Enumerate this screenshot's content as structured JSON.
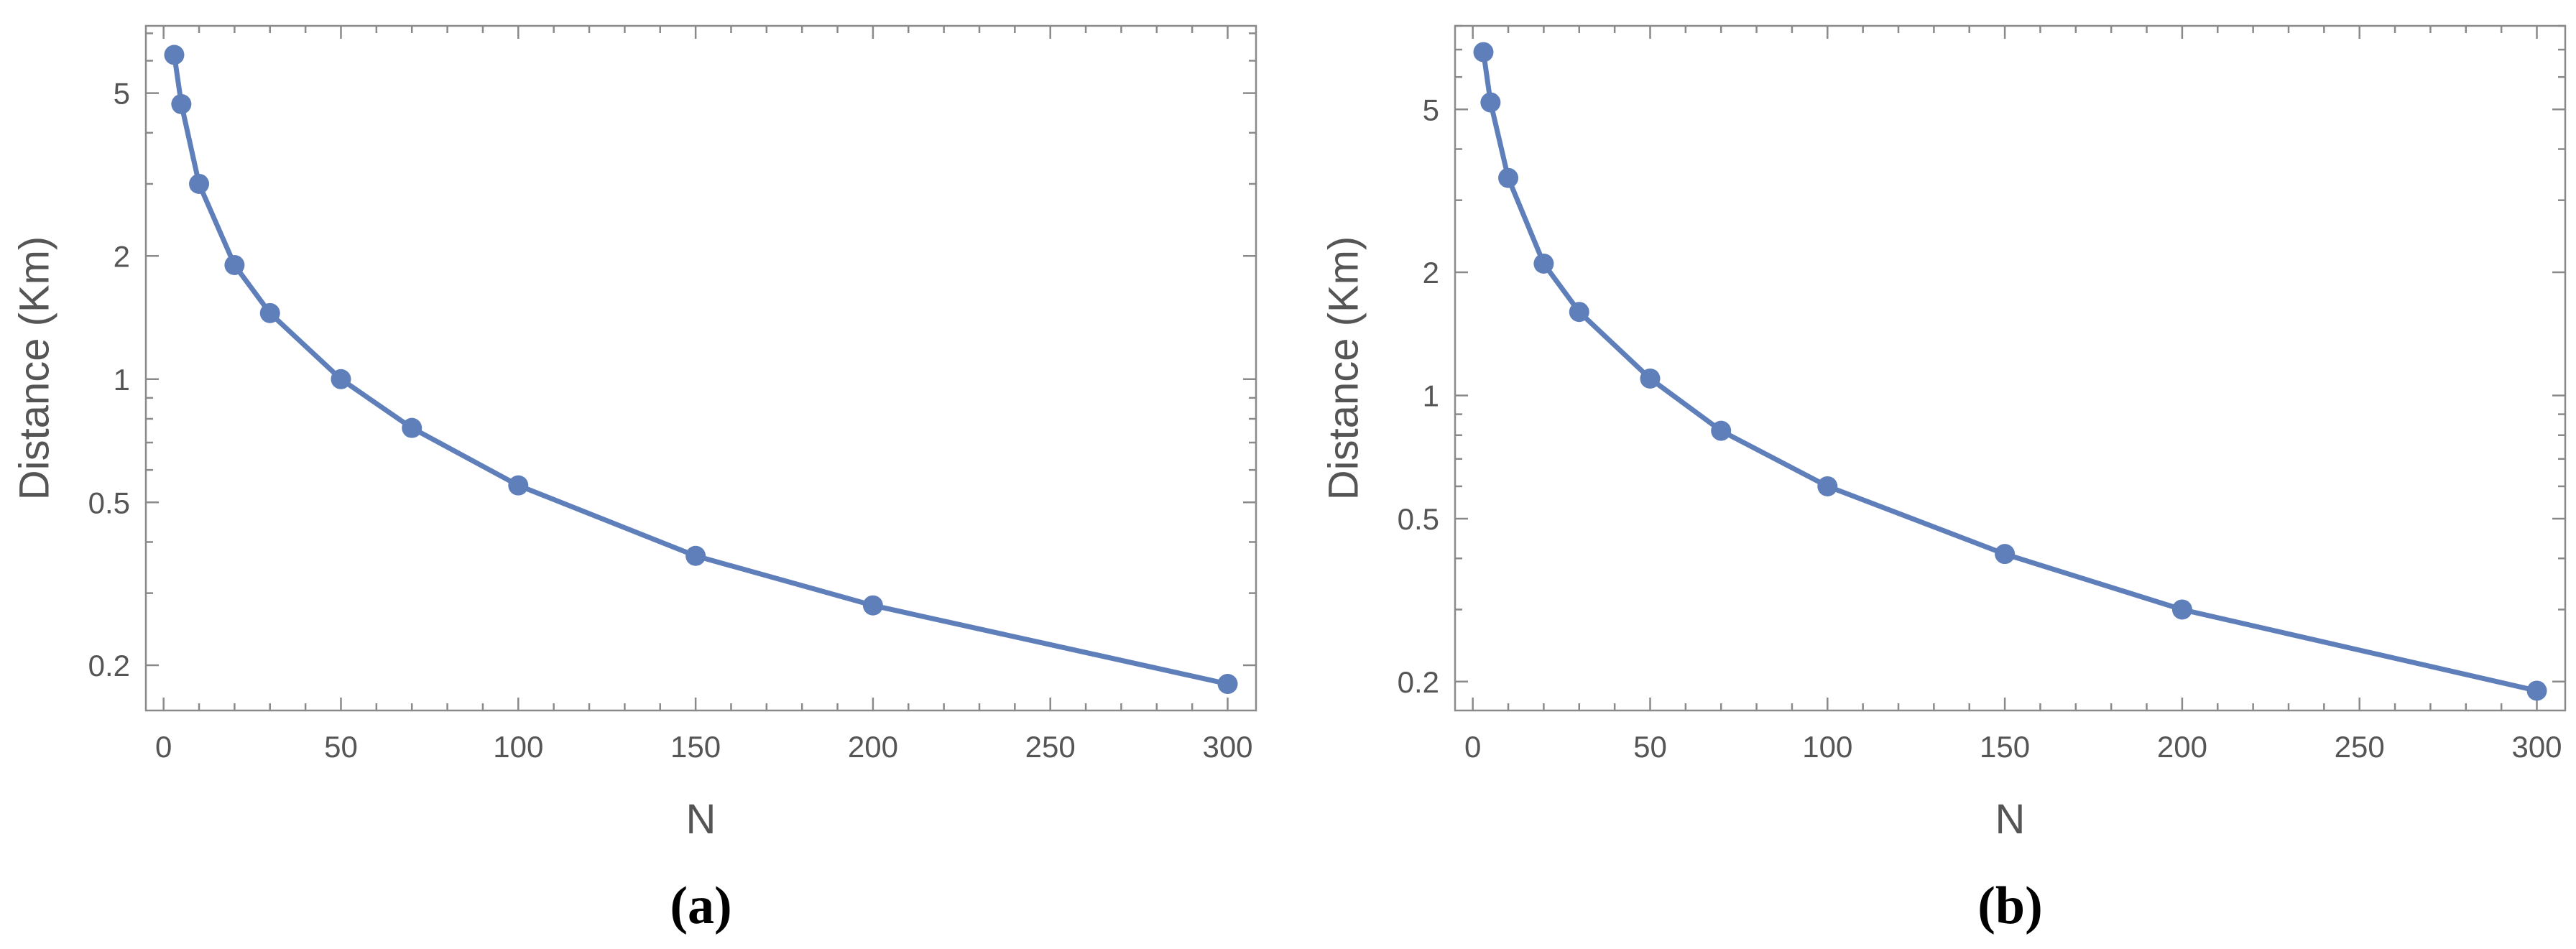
{
  "colors": {
    "series": "#5f7fba",
    "frame": "#8a8a8a",
    "text": "#555555"
  },
  "chart_data": [
    {
      "type": "line",
      "caption": "(a)",
      "xlabel": "N",
      "ylabel": "Distance (Km)",
      "yscale": "log",
      "xlim": [
        -5,
        308
      ],
      "ylim": [
        0.155,
        7.3
      ],
      "xticks": [
        0,
        50,
        100,
        150,
        200,
        250,
        300
      ],
      "xtick_labels": [
        "0",
        "50",
        "100",
        "150",
        "200",
        "250",
        "300"
      ],
      "yticks": [
        0.2,
        0.5,
        1,
        2,
        5
      ],
      "ytick_labels": [
        "0.2",
        "0.5",
        "1",
        "2",
        "5"
      ],
      "grid": false,
      "markers": true,
      "x": [
        3,
        5,
        10,
        20,
        30,
        50,
        70,
        100,
        150,
        200,
        300
      ],
      "y": [
        6.2,
        4.7,
        3.0,
        1.9,
        1.45,
        1.0,
        0.76,
        0.55,
        0.37,
        0.28,
        0.18
      ]
    },
    {
      "type": "line",
      "caption": "(b)",
      "xlabel": "N",
      "ylabel": "Distance (Km)",
      "yscale": "log",
      "xlim": [
        -5,
        308
      ],
      "ylim": [
        0.17,
        8.0
      ],
      "xticks": [
        0,
        50,
        100,
        150,
        200,
        250,
        300
      ],
      "xtick_labels": [
        "0",
        "50",
        "100",
        "150",
        "200",
        "250",
        "300"
      ],
      "yticks": [
        0.2,
        0.5,
        1,
        2,
        5
      ],
      "ytick_labels": [
        "0.2",
        "0.5",
        "1",
        "2",
        "5"
      ],
      "grid": false,
      "markers": true,
      "x": [
        3,
        5,
        10,
        20,
        30,
        50,
        70,
        100,
        150,
        200,
        300
      ],
      "y": [
        6.9,
        5.2,
        3.4,
        2.1,
        1.6,
        1.1,
        0.82,
        0.6,
        0.41,
        0.3,
        0.19
      ]
    }
  ]
}
